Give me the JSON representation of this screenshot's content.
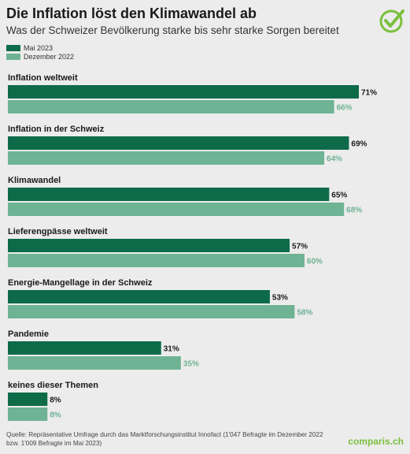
{
  "header": {
    "title": "Die Inflation löst den Klimawandel ab",
    "subtitle": "Was der Schweizer Bevölkerung starke bis sehr starke Sorgen bereitet"
  },
  "footer": {
    "source": "Quelle: Repräsentative Umfrage durch das Marktforschungsinstitut Innofact (1'047 Befragte im Dezember 2022 bzw. 1'009 Befragte im Mai 2023)",
    "brand": "comparis.ch"
  },
  "colors": {
    "mai_2023": "#0e6b4a",
    "dezember_2022": "#6db394",
    "logo": "#7bbf3e"
  },
  "chart_data": {
    "type": "bar",
    "orientation": "horizontal",
    "title": "Die Inflation löst den Klimawandel ab",
    "subtitle": "Was der Schweizer Bevölkerung starke bis sehr starke Sorgen bereitet",
    "legend_position": "top-left",
    "grid": false,
    "xlim": [
      0,
      71
    ],
    "unit": "%",
    "categories": [
      "Inflation weltweit",
      "Inflation in der Schweiz",
      "Klimawandel",
      "Lieferengpässe weltweit",
      "Energie-Mangellage in der Schweiz",
      "Pandemie",
      "keines dieser Themen"
    ],
    "series": [
      {
        "name": "Mai 2023",
        "values": [
          71,
          69,
          65,
          57,
          53,
          31,
          8
        ]
      },
      {
        "name": "Dezember 2022",
        "values": [
          66,
          64,
          68,
          60,
          58,
          35,
          8
        ]
      }
    ]
  }
}
